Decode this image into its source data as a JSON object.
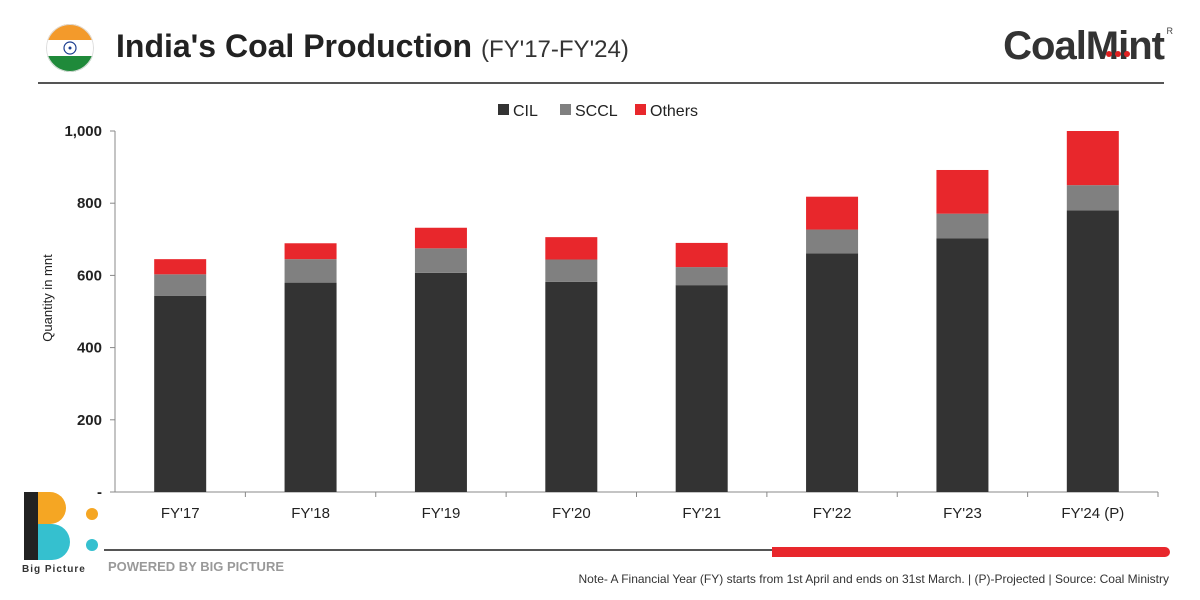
{
  "header": {
    "title": "India's Coal Production",
    "subtitle": "(FY'17-FY'24)",
    "logo_text": "CoalMint",
    "logo_mark": "R"
  },
  "chart_data": {
    "type": "bar",
    "stacked": true,
    "categories": [
      "FY'17",
      "FY'18",
      "FY'19",
      "FY'20",
      "FY'21",
      "FY'22",
      "FY'23",
      "FY'24 (P)"
    ],
    "series": [
      {
        "name": "CIL",
        "color": "#333333",
        "values": [
          543,
          580,
          607,
          582,
          573,
          661,
          703,
          780
        ]
      },
      {
        "name": "SCCL",
        "color": "#808080",
        "values": [
          60,
          65,
          68,
          62,
          50,
          66,
          68,
          70
        ]
      },
      {
        "name": "Others",
        "color": "#e8272c",
        "values": [
          42,
          44,
          57,
          62,
          67,
          91,
          121,
          150
        ]
      }
    ],
    "ylabel": "Quantity in mnt",
    "xlabel": "",
    "ylim": [
      0,
      1000
    ],
    "yticks": [
      0,
      200,
      400,
      600,
      800,
      1000
    ],
    "ytick_labels": [
      "-",
      "200",
      "400",
      "600",
      "800",
      "1,000"
    ],
    "legend_position": "top-center",
    "grid": false
  },
  "footer": {
    "brand_label": "Big Picture",
    "powered_by": "POWERED BY BIG PICTURE",
    "note": "Note- A Financial Year (FY) starts from 1st April and ends on 31st March. | (P)-Projected  | Source: Coal Ministry"
  }
}
